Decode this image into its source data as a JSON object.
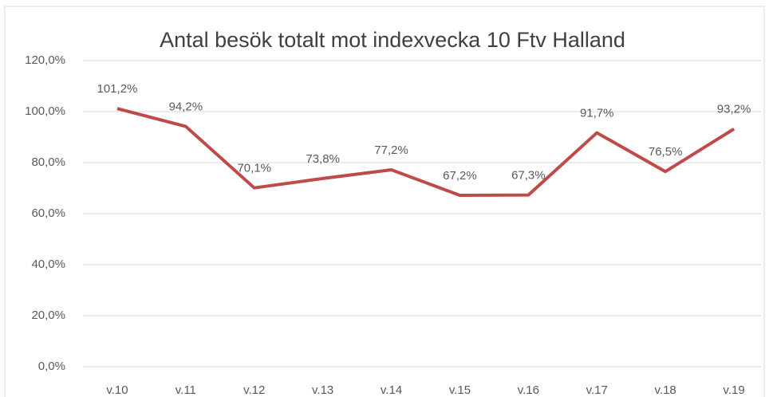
{
  "chart_data": {
    "type": "line",
    "title": "Antal besök totalt mot indexvecka 10 Ftv Halland",
    "categories": [
      "v.10",
      "v.11",
      "v.12",
      "v.13",
      "v.14",
      "v.15",
      "v.16",
      "v.17",
      "v.18",
      "v.19"
    ],
    "series": [
      {
        "name": "Antal besök",
        "color": "#be4b48",
        "values": [
          101.2,
          94.2,
          70.1,
          73.8,
          77.2,
          67.2,
          67.3,
          91.7,
          76.5,
          93.2
        ],
        "value_labels": [
          "101,2%",
          "94,2%",
          "70,1%",
          "73,8%",
          "77,2%",
          "67,2%",
          "67,3%",
          "91,7%",
          "76,5%",
          "93,2%"
        ]
      }
    ],
    "ylim": [
      0,
      120
    ],
    "yticks": [
      {
        "value": 0,
        "label": "0,0%"
      },
      {
        "value": 20,
        "label": "20,0%"
      },
      {
        "value": 40,
        "label": "40,0%"
      },
      {
        "value": 60,
        "label": "60,0%"
      },
      {
        "value": 80,
        "label": "80,0%"
      },
      {
        "value": 100,
        "label": "100,0%"
      },
      {
        "value": 120,
        "label": "120,0%"
      }
    ],
    "grid": true
  }
}
